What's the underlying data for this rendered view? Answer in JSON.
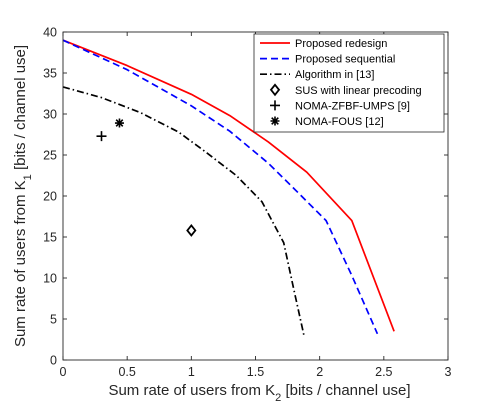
{
  "chart_data": {
    "type": "line",
    "xlabel": {
      "main": "Sum rate of users from K",
      "sub": "2",
      "unit": " [bits / channel use]"
    },
    "ylabel": {
      "main": "Sum rate of users from K",
      "sub": "1",
      "unit": " [bits / channel use]"
    },
    "xlim": [
      0,
      3
    ],
    "ylim": [
      0,
      40
    ],
    "xticks": [
      0,
      0.5,
      1,
      1.5,
      2,
      2.5,
      3
    ],
    "yticks": [
      0,
      5,
      10,
      15,
      20,
      25,
      30,
      35,
      40
    ],
    "xtick_labels": [
      "0",
      "0.5",
      "1",
      "1.5",
      "2",
      "2.5",
      "3"
    ],
    "ytick_labels": [
      "0",
      "5",
      "10",
      "15",
      "20",
      "25",
      "30",
      "35",
      "40"
    ],
    "grid": false,
    "legend_position": "top-right",
    "series": [
      {
        "name": "Proposed redesign",
        "color": "#ff0000",
        "style": "solid",
        "x": [
          0.0,
          0.5,
          1.0,
          1.3,
          1.6,
          1.9,
          2.25,
          2.58
        ],
        "y": [
          39.0,
          35.9,
          32.4,
          29.8,
          26.6,
          22.9,
          17.0,
          3.5
        ]
      },
      {
        "name": "Proposed sequential",
        "color": "#0000ff",
        "style": "dashed",
        "x": [
          0.0,
          0.5,
          1.0,
          1.3,
          1.6,
          1.8,
          2.05,
          2.25,
          2.45
        ],
        "y": [
          39.0,
          35.4,
          31.0,
          27.9,
          24.0,
          20.9,
          17.0,
          10.3,
          3.2
        ]
      },
      {
        "name": "Algorithm in [13]",
        "color": "#000000",
        "style": "dashdot",
        "x": [
          0.0,
          0.3,
          0.6,
          0.9,
          1.1,
          1.35,
          1.55,
          1.72,
          1.8,
          1.88
        ],
        "y": [
          33.3,
          32.0,
          30.2,
          27.8,
          25.5,
          22.5,
          19.3,
          14.3,
          8.5,
          2.8
        ]
      },
      {
        "name": "SUS with linear precoding",
        "color": "#000000",
        "marker": "diamond",
        "x": [
          1.0
        ],
        "y": [
          15.8
        ]
      },
      {
        "name": "NOMA-ZFBF-UMPS [9]",
        "color": "#000000",
        "marker": "plus",
        "x": [
          0.3
        ],
        "y": [
          27.3
        ]
      },
      {
        "name": "NOMA-FOUS [12]",
        "color": "#000000",
        "marker": "asterisk",
        "x": [
          0.44
        ],
        "y": [
          28.9
        ]
      }
    ]
  }
}
